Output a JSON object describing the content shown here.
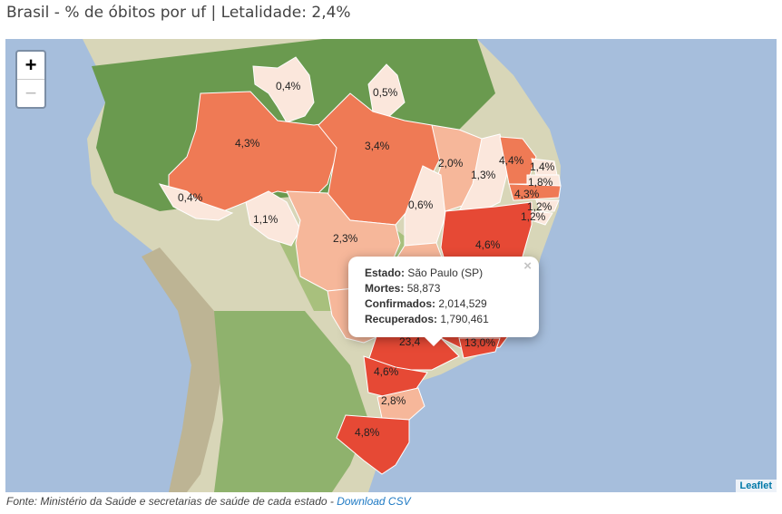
{
  "title": "Brasil - % de óbitos por uf | Letalidade: 2,4%",
  "zoom": {
    "in": "+",
    "out": "−"
  },
  "attribution": "Leaflet",
  "footer": {
    "text": "Fonte: Ministério da Saúde e secretarias de saúde de cada estado - ",
    "link": "Download CSV"
  },
  "popup": {
    "close": "×",
    "estado_label": "Estado:",
    "estado_value": "São Paulo (SP)",
    "mortes_label": "Mortes:",
    "mortes_value": "58,873",
    "confirmados_label": "Confirmados:",
    "confirmados_value": "2,014,529",
    "recuperados_label": "Recuperados:",
    "recuperados_value": "1,790,461"
  },
  "colors": {
    "ocean": "#a6bedc",
    "forest": "#6a9a4f",
    "land": "#c9d6a8",
    "mountain": "#d8cfb5",
    "high": "#e64935",
    "mid": "#ef7a55",
    "low": "#f6b79a",
    "lowest": "#fbe7dc"
  },
  "states": [
    {
      "id": "RR",
      "label": "0,4%"
    },
    {
      "id": "AP",
      "label": "0,5%"
    },
    {
      "id": "AM",
      "label": "4,3%"
    },
    {
      "id": "PA",
      "label": "3,4%"
    },
    {
      "id": "MA",
      "label": "2,0%"
    },
    {
      "id": "PI",
      "label": "1,3%"
    },
    {
      "id": "CE",
      "label": "4,4%"
    },
    {
      "id": "RN",
      "label": "1,4%"
    },
    {
      "id": "PB",
      "label": "1,8%"
    },
    {
      "id": "PE",
      "label": "4,3%"
    },
    {
      "id": "AL",
      "label": "1,2%"
    },
    {
      "id": "SE",
      "label": "1,2%"
    },
    {
      "id": "AC",
      "label": "0,4%"
    },
    {
      "id": "RO",
      "label": "1,1%"
    },
    {
      "id": "TO",
      "label": "0,6%"
    },
    {
      "id": "MT",
      "label": "2,3%"
    },
    {
      "id": "BA",
      "label": "4,6%"
    },
    {
      "id": "SP",
      "label": "23,4"
    },
    {
      "id": "RJ",
      "label": "13,0%"
    },
    {
      "id": "PR",
      "label": "4,6%"
    },
    {
      "id": "SC",
      "label": "2,8%"
    },
    {
      "id": "RS",
      "label": "4,8%"
    }
  ]
}
